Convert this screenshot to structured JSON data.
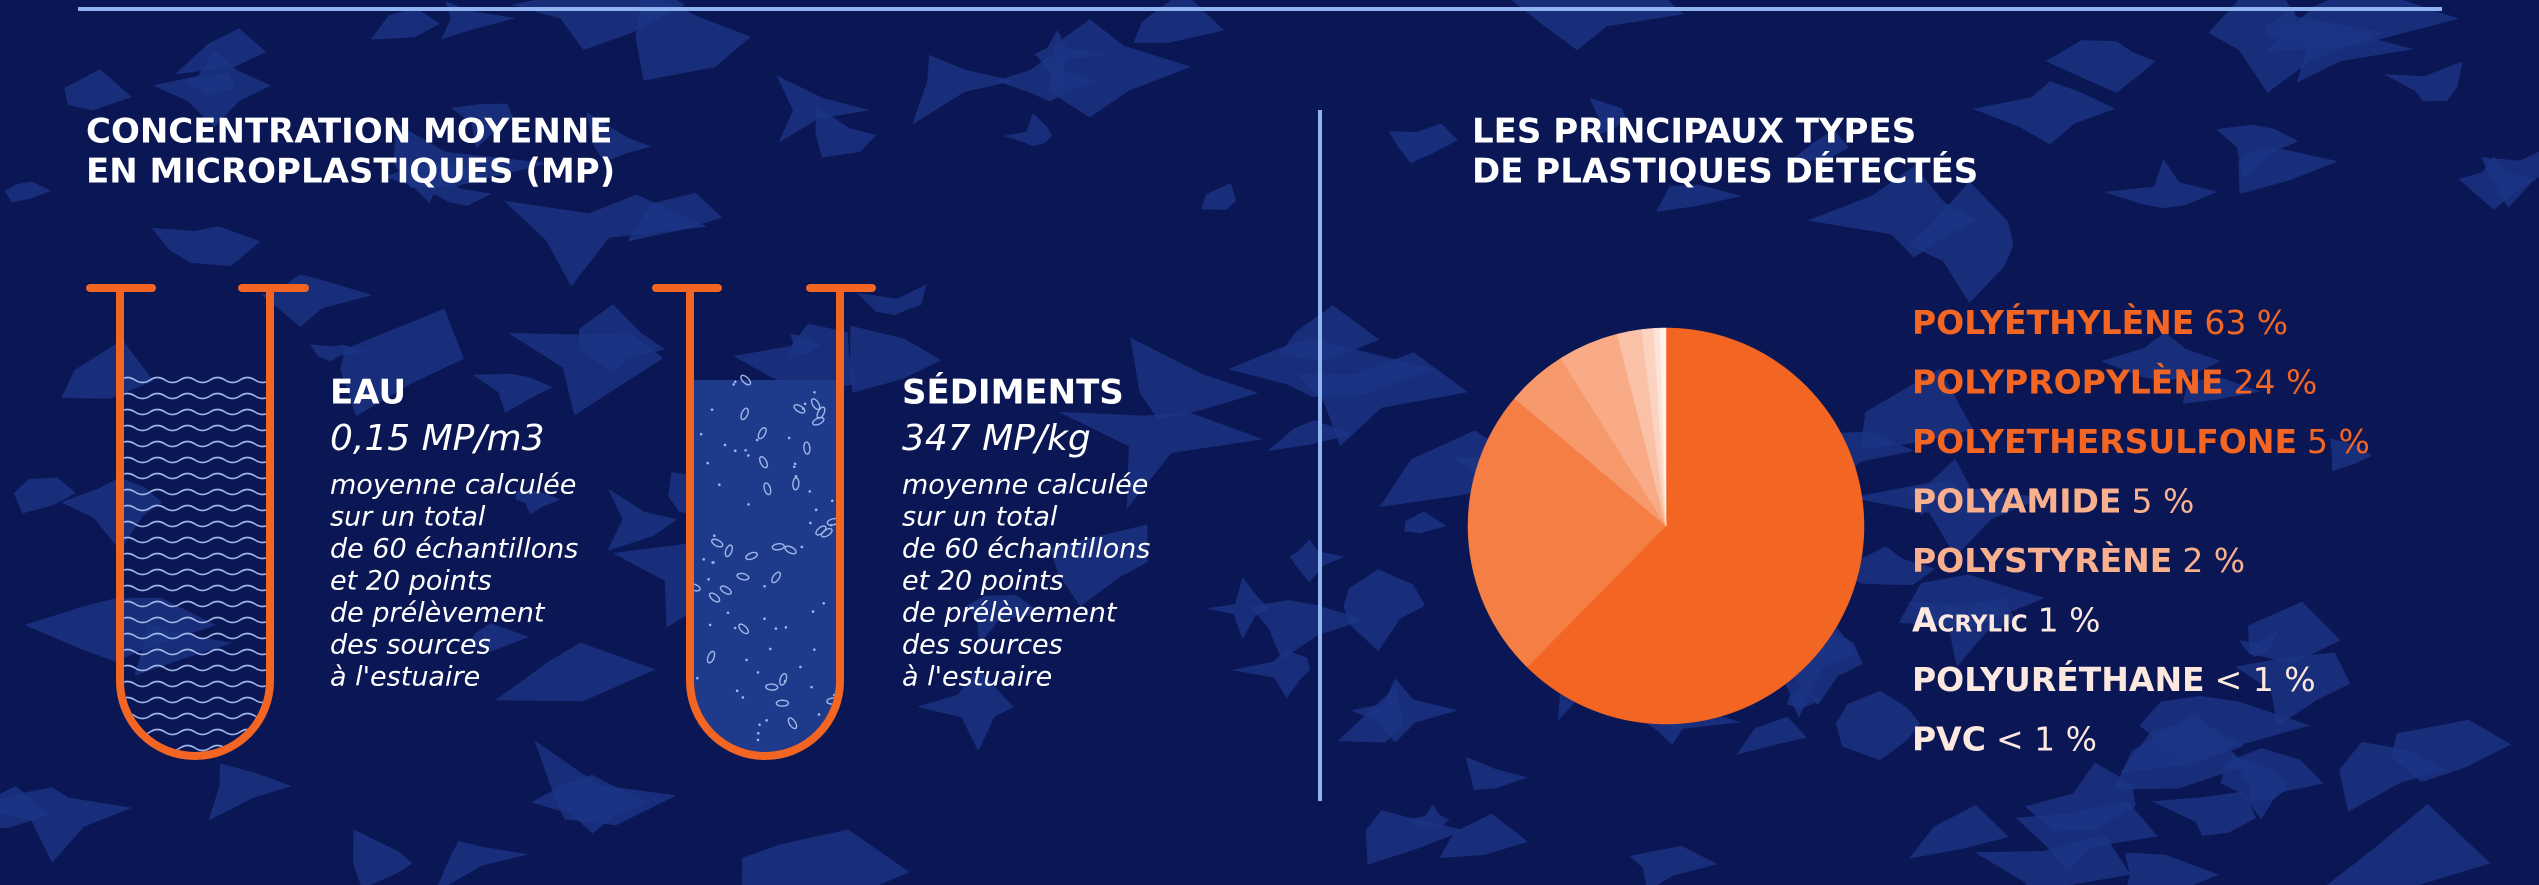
{
  "left": {
    "title": [
      "CONCENTRATION MOYENNE",
      "EN MICROPLASTIQUES (MP)"
    ],
    "samples": [
      {
        "label": "EAU",
        "value": "0,15 MP/m3",
        "description": [
          "moyenne calculée",
          "sur un total",
          "de 60 échantillons",
          "et 20 points",
          "de prélèvement",
          "des sources",
          "à l'estuaire"
        ]
      },
      {
        "label": "SÉDIMENTS",
        "value": "347 MP/kg",
        "description": [
          "moyenne calculée",
          "sur un total",
          "de 60 échantillons",
          "et 20 points",
          "de prélèvement",
          "des sources",
          "à l'estuaire"
        ]
      }
    ]
  },
  "chart_data": {
    "type": "pie",
    "title": [
      "LES PRINCIPAUX TYPES",
      "DE PLASTIQUES DÉTECTÉS"
    ],
    "categories": [
      "POLYÉTHYLÈNE",
      "POLYPROPYLÈNE",
      "POLYETHERSULFONE",
      "POLYAMIDE",
      "POLYSTYRÈNE",
      "Acrylic",
      "POLYURÉTHANE",
      "PVC"
    ],
    "values": [
      63,
      24,
      5,
      5,
      2,
      1,
      0.5,
      0.5
    ],
    "value_labels": [
      "63 %",
      "24 %",
      "5 %",
      "5 %",
      "2 %",
      "1 %",
      "< 1 %",
      "< 1 %"
    ],
    "colors": [
      "#f26522",
      "#f47e44",
      "#f69a6c",
      "#f8ab86",
      "#f9c2a7",
      "#fbd3c0",
      "#fde4d7",
      "#fff3ec"
    ],
    "label_colors": [
      "#f26522",
      "#f26522",
      "#f26522",
      "#f9b08f",
      "#f9b08f",
      "#fde8e0",
      "#fde8e0",
      "#fde8e0"
    ]
  }
}
